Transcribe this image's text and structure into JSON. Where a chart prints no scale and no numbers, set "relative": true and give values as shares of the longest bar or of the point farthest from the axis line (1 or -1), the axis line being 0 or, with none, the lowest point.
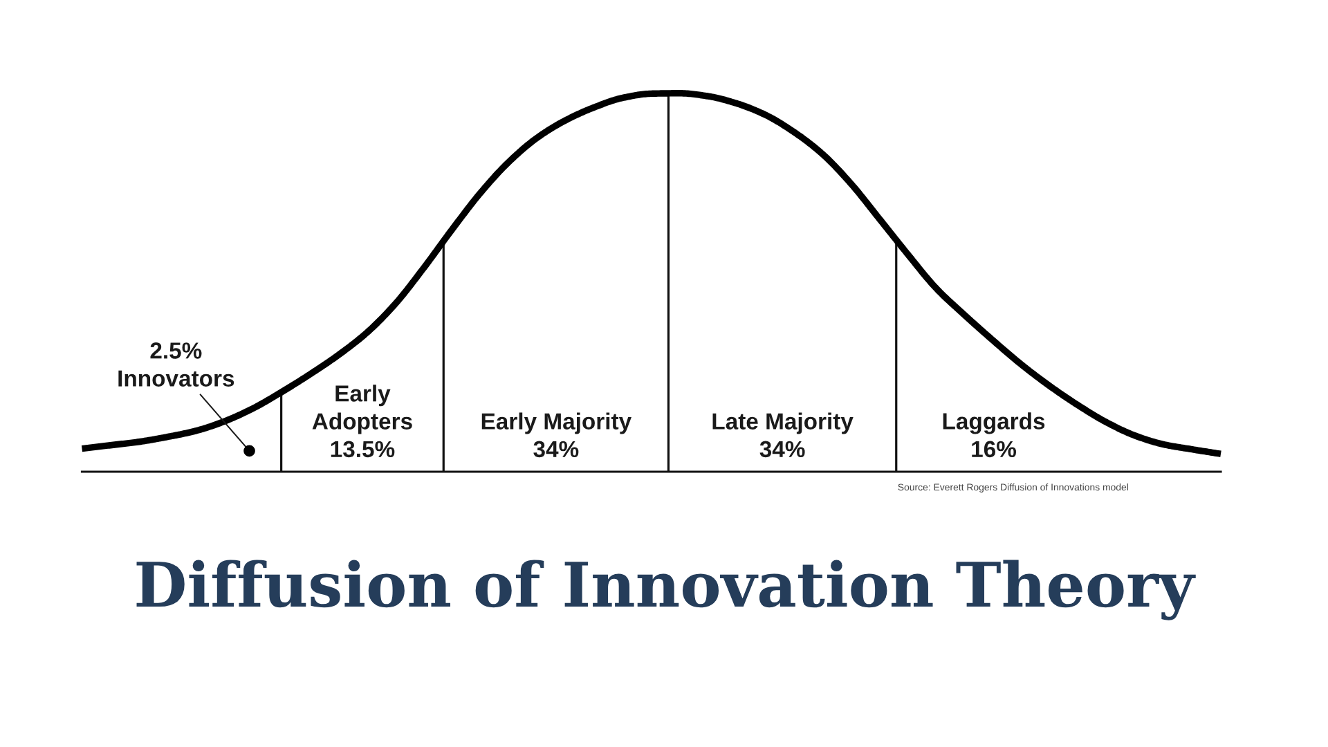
{
  "chart_data": {
    "type": "line",
    "title": "Diffusion of Innovation Theory",
    "categories": [
      null,
      null,
      null,
      null,
      null,
      null,
      null,
      null,
      null,
      null,
      null,
      null,
      null,
      null,
      null,
      null,
      null,
      null,
      null,
      null,
      null,
      null,
      null,
      null,
      null,
      null,
      null,
      null,
      null,
      null,
      null,
      null,
      null,
      null,
      null,
      null,
      null,
      null,
      null,
      null,
      null
    ],
    "series": [
      {
        "color": "#000000",
        "values": [
          0.061,
          0.07,
          0.079,
          0.092,
          0.108,
          0.133,
          0.167,
          0.21,
          0.257,
          0.308,
          0.367,
          0.443,
          0.538,
          0.64,
          0.737,
          0.819,
          0.883,
          0.929,
          0.963,
          0.988,
          0.999,
          1.0,
          0.992,
          0.973,
          0.943,
          0.898,
          0.84,
          0.762,
          0.669,
          0.575,
          0.485,
          0.414,
          0.347,
          0.283,
          0.226,
          0.175,
          0.13,
          0.095,
          0.072,
          0.059,
          0.047
        ]
      }
    ],
    "relative": true,
    "annotations": [
      "2.5%\nInnovators",
      "Early\nAdopters\n13.5%",
      "Early Majority\n34%",
      "Late Majority\n34%",
      "Laggards\n16%",
      "Source: Everett Rogers Diffusion of Innovations model"
    ],
    "line_style": "solid"
  }
}
